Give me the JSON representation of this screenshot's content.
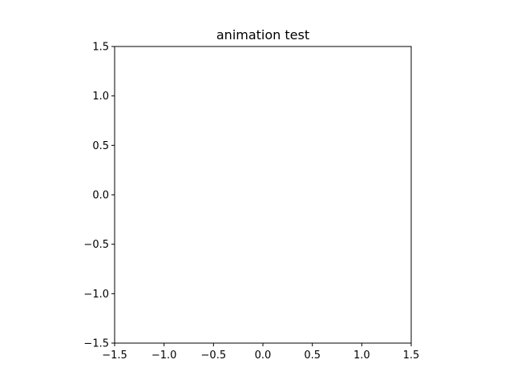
{
  "chart_data": {
    "type": "line",
    "title": "animation test",
    "xlabel": "",
    "ylabel": "",
    "xlim": [
      -1.5,
      1.5
    ],
    "ylim": [
      -1.5,
      1.5
    ],
    "xticks": [
      -1.5,
      -1.0,
      -0.5,
      0.0,
      0.5,
      1.0,
      1.5
    ],
    "yticks": [
      -1.5,
      -1.0,
      -0.5,
      0.0,
      0.5,
      1.0,
      1.5
    ],
    "xtick_labels": [
      "−1.5",
      "−1.0",
      "−0.5",
      "0.0",
      "0.5",
      "1.0",
      "1.5"
    ],
    "ytick_labels": [
      "−1.5",
      "−1.0",
      "−0.5",
      "0.0",
      "0.5",
      "1.0",
      "1.5"
    ],
    "grid": false,
    "series": [],
    "colors": {
      "axes": "#000000",
      "background": "#ffffff"
    }
  }
}
